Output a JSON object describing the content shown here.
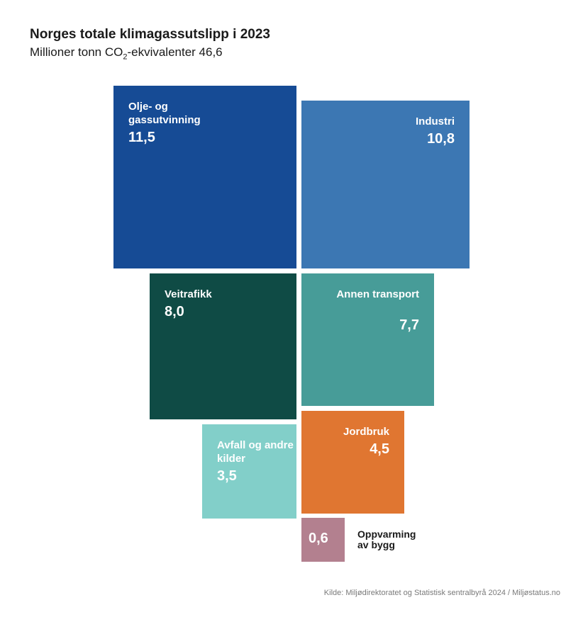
{
  "chart_data": {
    "type": "treemap",
    "title": "Norges totale klimagassutslipp i 2023",
    "subtitle_prefix": "Millioner tonn CO",
    "subtitle_sub": "2",
    "subtitle_suffix": "-ekvivalenter 46,6",
    "total": 46.6,
    "categories": [
      {
        "label": "Olje- og gassutvinning",
        "value_label": "11,5",
        "value": 11.5,
        "color": "#164b95"
      },
      {
        "label": "Industri",
        "value_label": "10,8",
        "value": 10.8,
        "color": "#3c77b3"
      },
      {
        "label": "Veitrafikk",
        "value_label": "8,0",
        "value": 8.0,
        "color": "#0f4b45"
      },
      {
        "label": "Annen transport",
        "value_label": "7,7",
        "value": 7.7,
        "color": "#479c98"
      },
      {
        "label": "Avfall og andre kilder",
        "value_label": "3,5",
        "value": 3.5,
        "color": "#82cfc9"
      },
      {
        "label": "Jordbruk",
        "value_label": "4,5",
        "value": 4.5,
        "color": "#e07631"
      },
      {
        "label": "Oppvarming av bygg",
        "value_label": "0,6",
        "value": 0.6,
        "color": "#b3808f"
      }
    ],
    "source": "Kilde: Miljødirektoratet og Statistisk sentralbyrå 2024 / Miljøstatus.no"
  }
}
